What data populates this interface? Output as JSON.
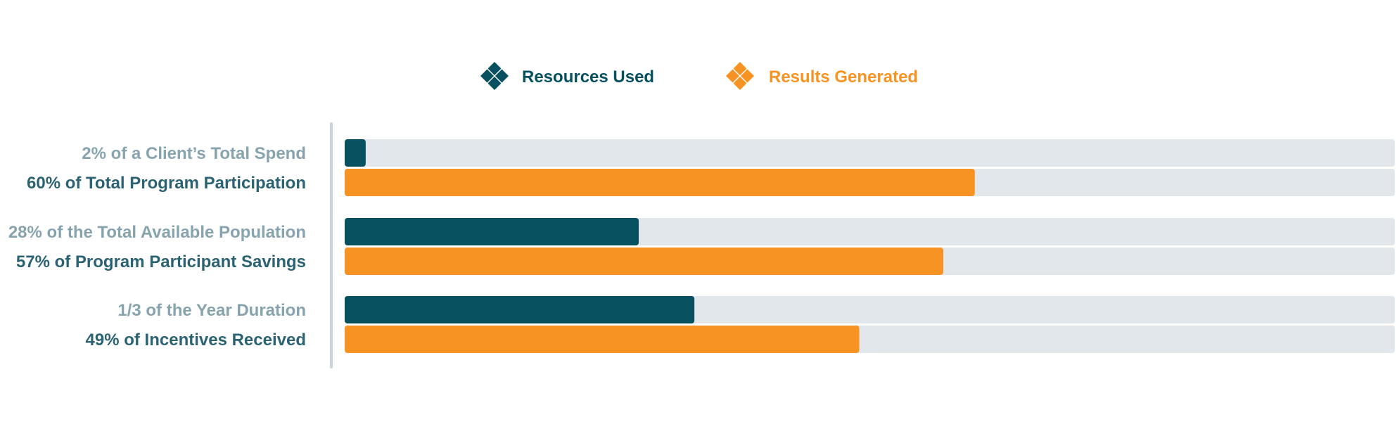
{
  "chart_data": {
    "type": "bar",
    "orientation": "horizontal",
    "xlim": [
      0,
      100
    ],
    "grid": false,
    "legend": {
      "position": "top-center",
      "entries": [
        {
          "label": "Resources Used",
          "color": "#06505f",
          "icon": "diamond-cluster-icon"
        },
        {
          "label": "Results Generated",
          "color": "#f79322",
          "icon": "diamond-cluster-icon"
        }
      ]
    },
    "groups": [
      {
        "resources": {
          "label": "2% of a Client’s Total Spend",
          "value": 2
        },
        "results": {
          "label": "60% of Total Program Participation",
          "value": 60
        }
      },
      {
        "resources": {
          "label": "28% of the Total Available Population",
          "value": 28
        },
        "results": {
          "label": "57% of Program Participant Savings",
          "value": 57
        }
      },
      {
        "resources": {
          "label": "1/3 of the Year Duration",
          "value": 33.3
        },
        "results": {
          "label": "49% of Incentives Received",
          "value": 49
        }
      }
    ]
  },
  "colors": {
    "resources": "#06505f",
    "results": "#f79322",
    "track": "#e1e7ea",
    "resources_label": "#86a3ae",
    "results_label": "#2b6373",
    "axis_line": "#c9d4d8"
  }
}
